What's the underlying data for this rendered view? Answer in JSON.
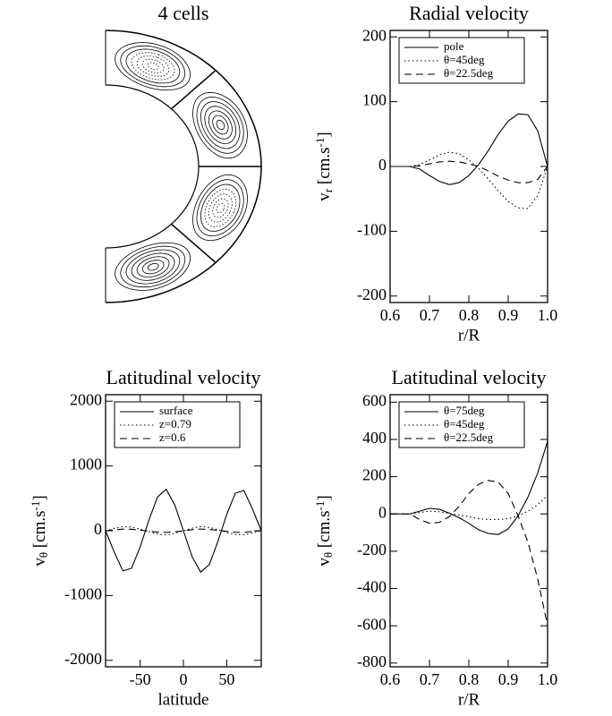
{
  "chart_data": [
    {
      "type": "streamlines",
      "title": "4 cells"
    },
    {
      "type": "line",
      "title": "Radial velocity",
      "xlabel": "r/R",
      "ylabel": [
        "v",
        "r",
        " [cm.s",
        "-1",
        "]"
      ],
      "x": [
        0.6,
        0.625,
        0.65,
        0.675,
        0.7,
        0.725,
        0.75,
        0.775,
        0.8,
        0.825,
        0.85,
        0.875,
        0.9,
        0.925,
        0.95,
        0.975,
        1.0
      ],
      "series": [
        {
          "name": "pole",
          "color": "#000000",
          "dash": "solid",
          "values": [
            0,
            0,
            0,
            -4,
            -14,
            -23,
            -28,
            -25,
            -14,
            3,
            25,
            50,
            70,
            81,
            80,
            55,
            0
          ]
        },
        {
          "name": "θ=45deg",
          "color": "#000000",
          "dash": "dotted",
          "values": [
            0,
            0,
            0,
            3,
            10,
            18,
            22,
            20,
            10,
            -3,
            -20,
            -38,
            -54,
            -64,
            -65,
            -45,
            0
          ]
        },
        {
          "name": "θ=22.5deg",
          "color": "#000000",
          "dash": "dashed",
          "values": [
            0,
            0,
            0,
            1,
            4,
            7,
            8,
            7,
            4,
            0,
            -7,
            -15,
            -21,
            -25,
            -25,
            -20,
            0
          ]
        }
      ],
      "xlim": [
        0.6,
        1.0
      ],
      "xticks": [
        0.6,
        0.7,
        0.8,
        0.9,
        {
          "value": 1,
          "label": "1.0"
        }
      ],
      "ylim": [
        -210,
        210
      ],
      "yticks": [
        -200,
        -100,
        0,
        100,
        200
      ],
      "legend": "upper-left"
    },
    {
      "type": "line",
      "title": "Latitudinal velocity",
      "xlabel": "latitude",
      "ylabel": [
        "v",
        "θ",
        " [cm.s",
        "-1",
        "]"
      ],
      "x": [
        -90,
        -80,
        -70,
        -60,
        -50,
        -40,
        -30,
        -20,
        -10,
        0,
        10,
        20,
        30,
        40,
        50,
        60,
        70,
        80,
        90
      ],
      "series": [
        {
          "name": "surface",
          "color": "#000000",
          "dash": "solid",
          "values": [
            0,
            -330,
            -620,
            -580,
            -250,
            160,
            520,
            640,
            400,
            0,
            -400,
            -640,
            -520,
            -160,
            250,
            580,
            620,
            330,
            0
          ]
        },
        {
          "name": "z=0.79",
          "color": "#000000",
          "dash": "dotted",
          "values": [
            0,
            35,
            62,
            58,
            25,
            -16,
            -52,
            -64,
            -40,
            0,
            40,
            64,
            52,
            16,
            -25,
            -58,
            -62,
            -35,
            0
          ]
        },
        {
          "name": "z=0.6",
          "color": "#000000",
          "dash": "dashed",
          "values": [
            0,
            12,
            25,
            23,
            10,
            -6,
            -21,
            -26,
            -16,
            0,
            16,
            26,
            21,
            6,
            -10,
            -23,
            -25,
            -12,
            0
          ]
        }
      ],
      "xlim": [
        -90,
        90
      ],
      "xticks": [
        -50,
        0,
        50
      ],
      "ylim": [
        -2100,
        2100
      ],
      "yticks": [
        -2000,
        -1000,
        0,
        1000,
        2000
      ],
      "legend": "upper-left"
    },
    {
      "type": "line",
      "title": "Latitudinal velocity",
      "xlabel": "r/R",
      "ylabel": [
        "v",
        "θ",
        " [cm.s",
        "-1",
        "]"
      ],
      "x": [
        0.6,
        0.625,
        0.65,
        0.675,
        0.7,
        0.725,
        0.75,
        0.775,
        0.8,
        0.825,
        0.85,
        0.875,
        0.9,
        0.925,
        0.95,
        0.975,
        1.0
      ],
      "series": [
        {
          "name": "θ=75deg",
          "color": "#000000",
          "dash": "solid",
          "values": [
            0,
            0,
            0,
            15,
            30,
            25,
            5,
            -20,
            -50,
            -85,
            -105,
            -110,
            -80,
            -10,
            90,
            220,
            390
          ]
        },
        {
          "name": "θ=45deg",
          "color": "#000000",
          "dash": "dotted",
          "values": [
            0,
            0,
            0,
            8,
            15,
            12,
            3,
            -5,
            -15,
            -25,
            -30,
            -30,
            -25,
            -10,
            15,
            50,
            100
          ]
        },
        {
          "name": "θ=22.5deg",
          "color": "#000000",
          "dash": "dashed",
          "values": [
            0,
            0,
            0,
            -30,
            -50,
            -45,
            -15,
            40,
            110,
            160,
            180,
            170,
            110,
            -10,
            -150,
            -350,
            -600
          ]
        }
      ],
      "xlim": [
        0.6,
        1.0
      ],
      "xticks": [
        0.6,
        0.7,
        0.8,
        0.9,
        {
          "value": 1,
          "label": "1.0"
        }
      ],
      "ylim": [
        -820,
        640
      ],
      "yticks": [
        -800,
        -600,
        -400,
        -200,
        0,
        200,
        400,
        600
      ],
      "legend": "upper-left"
    }
  ]
}
